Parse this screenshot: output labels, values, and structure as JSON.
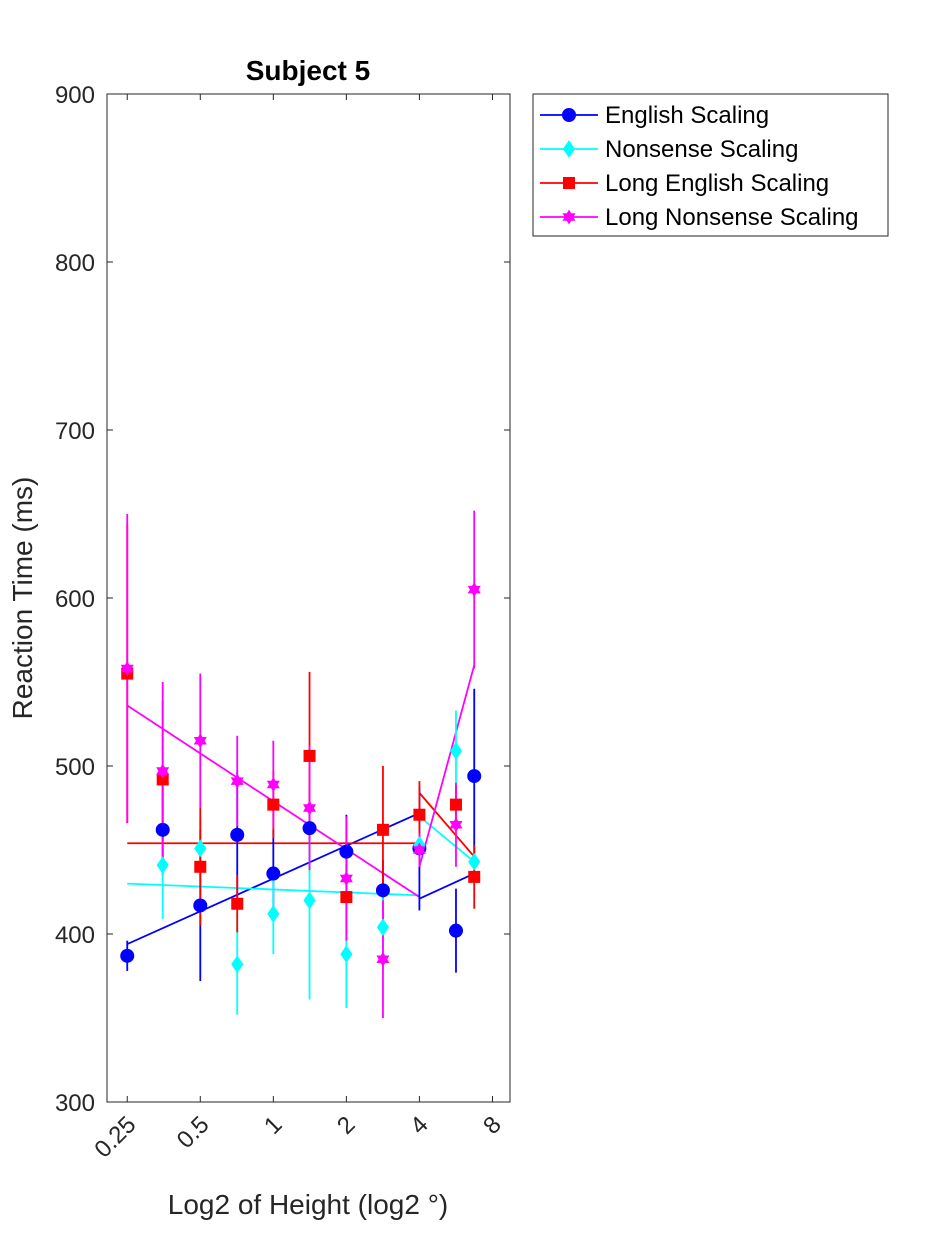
{
  "chart_data": {
    "type": "scatter",
    "title": "Subject 5",
    "xlabel": "Log2 of Height (log2 °)",
    "ylabel": "Reaction Time (ms)",
    "x_scale": "log2",
    "xlim": [
      0.25,
      8
    ],
    "ylim": [
      300,
      900
    ],
    "x_ticks": [
      0.25,
      0.5,
      1,
      2,
      4,
      8
    ],
    "x_tick_labels": [
      "0.25",
      "0.5",
      "1",
      "2",
      "4",
      "8"
    ],
    "y_ticks": [
      300,
      400,
      500,
      600,
      700,
      800,
      900
    ],
    "y_tick_labels": [
      "300",
      "400",
      "500",
      "600",
      "700",
      "800",
      "900"
    ],
    "grid": false,
    "legend_position": "outside top-right",
    "series": [
      {
        "name": "English Scaling",
        "color": "#0000ff",
        "marker": "circle",
        "x": [
          0.25,
          0.35,
          0.5,
          0.71,
          1,
          1.41,
          2,
          2.83,
          4,
          5.66,
          6.73
        ],
        "y": [
          387,
          462,
          417,
          459,
          436,
          463,
          449,
          426,
          451,
          402,
          494
        ],
        "err_low": [
          378,
          435,
          372,
          421,
          410,
          440,
          427,
          408,
          414,
          377,
          442
        ],
        "err_high": [
          396,
          489,
          462,
          497,
          462,
          486,
          471,
          444,
          488,
          427,
          546
        ],
        "fit_segments": [
          {
            "x": [
              0.25,
              4
            ],
            "y": [
              394,
              472
            ]
          },
          {
            "x": [
              4,
              6.73
            ],
            "y": [
              421,
              436
            ]
          }
        ]
      },
      {
        "name": "Nonsense Scaling",
        "color": "#00ffff",
        "marker": "diamond",
        "x": [
          0.35,
          0.5,
          0.71,
          1,
          1.41,
          2,
          2.83,
          4,
          5.66,
          6.73
        ],
        "y": [
          441,
          451,
          382,
          412,
          420,
          388,
          404,
          453,
          509,
          443
        ],
        "err_low": [
          409,
          433,
          352,
          388,
          361,
          356,
          378,
          441,
          485,
          433
        ],
        "err_high": [
          473,
          469,
          412,
          436,
          479,
          420,
          430,
          465,
          533,
          453
        ],
        "fit_segments": [
          {
            "x": [
              0.25,
              4
            ],
            "y": [
              430,
              423
            ]
          },
          {
            "x": [
              4,
              6.73
            ],
            "y": [
              470,
              443
            ]
          }
        ]
      },
      {
        "name": "Long English Scaling",
        "color": "#ff0000",
        "marker": "square",
        "x": [
          0.25,
          0.35,
          0.5,
          0.71,
          1,
          1.41,
          2,
          2.83,
          4,
          5.66,
          6.73
        ],
        "y": [
          555,
          492,
          440,
          418,
          477,
          506,
          422,
          462,
          471,
          477,
          434
        ],
        "err_low": [
          466,
          445,
          405,
          401,
          457,
          456,
          397,
          424,
          451,
          466,
          415
        ],
        "err_high": [
          644,
          539,
          475,
          435,
          497,
          556,
          447,
          500,
          491,
          488,
          453
        ],
        "fit_segments": [
          {
            "x": [
              0.25,
              4
            ],
            "y": [
              454,
              454
            ]
          },
          {
            "x": [
              4,
              6.73
            ],
            "y": [
              484,
              446
            ]
          }
        ]
      },
      {
        "name": "Long Nonsense Scaling",
        "color": "#ff00ff",
        "marker": "hexagram",
        "x": [
          0.25,
          0.35,
          0.5,
          0.71,
          1,
          1.41,
          2,
          2.83,
          4,
          5.66,
          6.73
        ],
        "y": [
          558,
          497,
          515,
          491,
          489,
          475,
          433,
          385,
          450,
          465,
          605
        ],
        "err_low": [
          466,
          444,
          475,
          464,
          463,
          438,
          396,
          350,
          440,
          440,
          558
        ],
        "err_high": [
          650,
          550,
          555,
          518,
          515,
          512,
          470,
          420,
          460,
          490,
          652
        ],
        "fit_segments": [
          {
            "x": [
              0.25,
              4
            ],
            "y": [
              536,
              422
            ]
          },
          {
            "x": [
              4,
              6.73
            ],
            "y": [
              440,
              560
            ]
          }
        ]
      }
    ]
  }
}
